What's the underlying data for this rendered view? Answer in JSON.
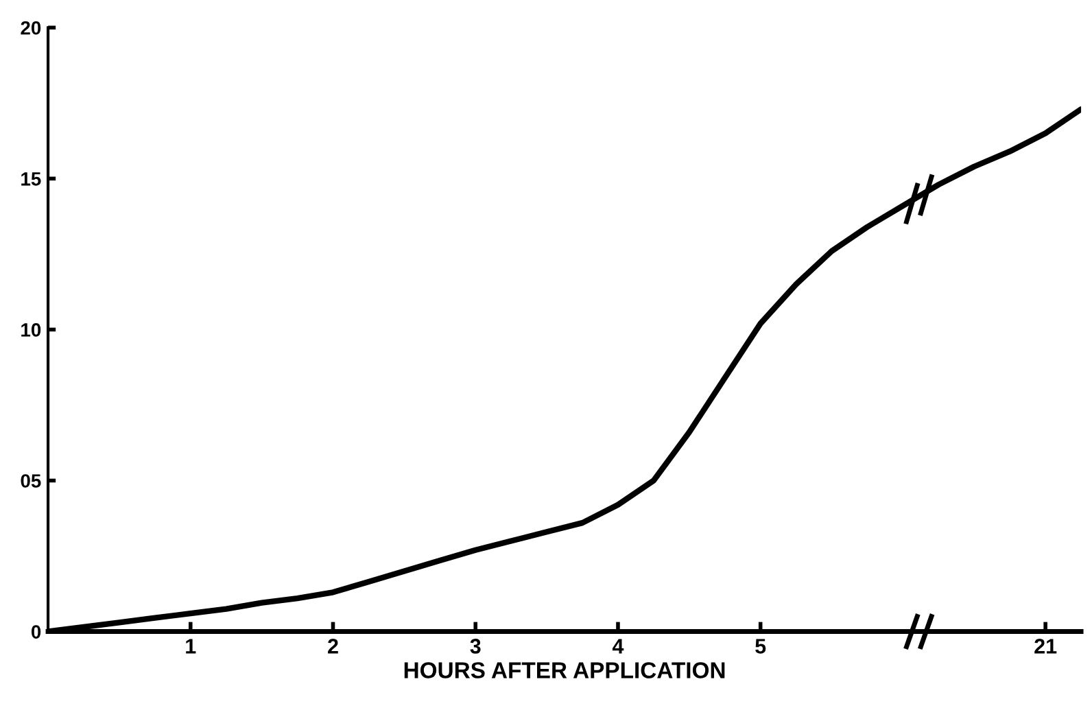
{
  "chart_data": {
    "type": "line",
    "xlabel": "HOURS AFTER APPLICATION",
    "categories": [
      null,
      null,
      null,
      null,
      "1",
      null,
      null,
      null,
      "2",
      null,
      null,
      null,
      "3",
      null,
      null,
      null,
      "4",
      null,
      null,
      null,
      "5",
      null,
      null,
      null,
      null,
      null,
      null,
      null,
      "21",
      null
    ],
    "series": [
      {
        "color": "#000000",
        "values": [
          0,
          0.15,
          0.3,
          0.45,
          0.6,
          0.75,
          0.95,
          1.1,
          1.3,
          1.65,
          2.0,
          2.35,
          2.7,
          3.0,
          3.3,
          3.6,
          4.2,
          5.0,
          6.6,
          8.4,
          10.2,
          11.5,
          12.6,
          13.4,
          14.1,
          14.8,
          15.4,
          15.9,
          16.5,
          17.3
        ]
      }
    ],
    "ylim": [
      0,
      20
    ],
    "yticks": [
      0,
      {
        "value": 5,
        "label": "05"
      },
      10,
      15,
      20
    ],
    "grid": false,
    "legend": false,
    "marker": "none",
    "line_style": "solid"
  }
}
